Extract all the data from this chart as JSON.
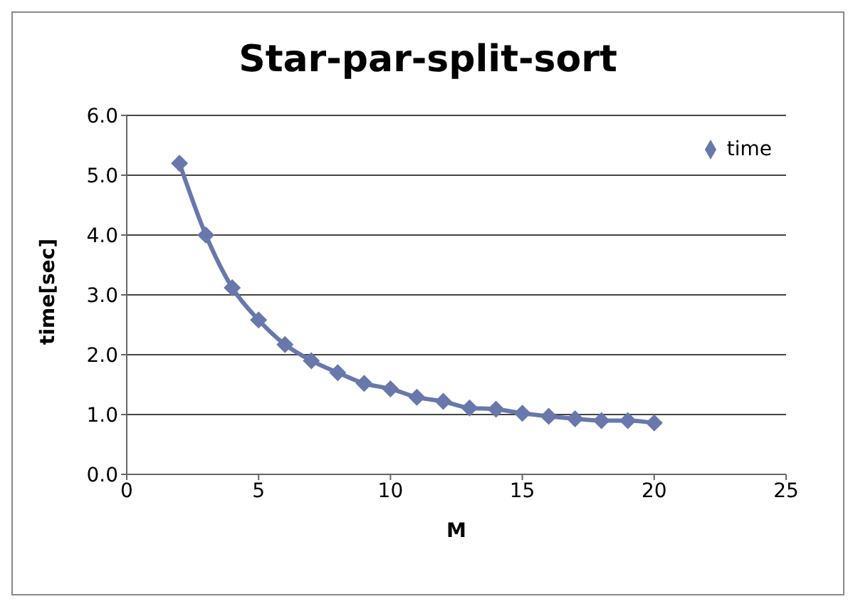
{
  "chart_data": {
    "type": "line",
    "title": "Star-par-split-sort",
    "xlabel": "M",
    "ylabel": "time[sec]",
    "x": [
      2,
      3,
      4,
      5,
      6,
      7,
      8,
      9,
      10,
      11,
      12,
      13,
      14,
      15,
      16,
      17,
      18,
      19,
      20
    ],
    "series": [
      {
        "name": "time",
        "color": "#6878ac",
        "values": [
          5.2,
          4.0,
          3.12,
          2.58,
          2.17,
          1.9,
          1.7,
          1.52,
          1.43,
          1.29,
          1.22,
          1.11,
          1.09,
          1.02,
          0.97,
          0.93,
          0.9,
          0.9,
          0.86
        ]
      }
    ],
    "xlim": [
      0,
      25
    ],
    "xticks": [
      0,
      5,
      10,
      15,
      20,
      25
    ],
    "ylim": [
      0,
      6
    ],
    "yticks": [
      {
        "value": 0,
        "label": "0.0"
      },
      {
        "value": 1,
        "label": "1.0"
      },
      {
        "value": 2,
        "label": "2.0"
      },
      {
        "value": 3,
        "label": "3.0"
      },
      {
        "value": 4,
        "label": "4.0"
      },
      {
        "value": 5,
        "label": "5.0"
      },
      {
        "value": 6,
        "label": "6.0"
      }
    ],
    "grid": "y",
    "legend": "top right",
    "marker": "diamond",
    "line_style": "solid"
  }
}
